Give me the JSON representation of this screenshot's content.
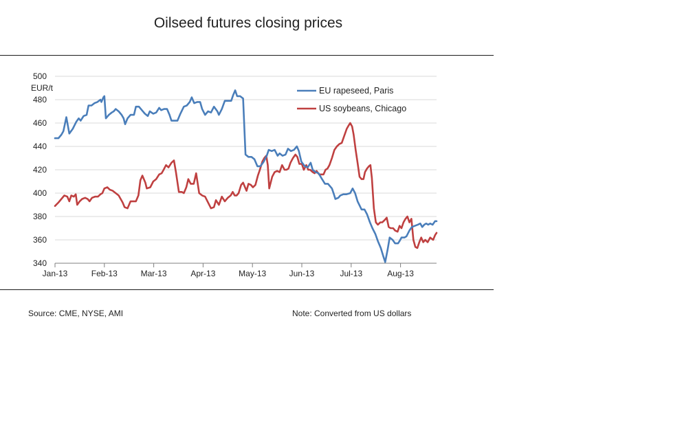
{
  "page": {
    "source": "Source: CME, NYSE, AMI",
    "note": "Note: Converted from US dollars"
  },
  "chart_data": {
    "type": "line",
    "title": "Oilseed futures closing prices",
    "ylabel": "EUR/t",
    "xlabel": "",
    "ylim": [
      340,
      500
    ],
    "yticks": [
      340,
      360,
      380,
      400,
      420,
      440,
      460,
      480,
      500
    ],
    "grid": true,
    "legend": "top-right",
    "x_range": [
      0,
      7.73
    ],
    "xticks": [
      {
        "label": "Jan-13",
        "pos": 0
      },
      {
        "label": "Feb-13",
        "pos": 1
      },
      {
        "label": "Mar-13",
        "pos": 2
      },
      {
        "label": "Apr-13",
        "pos": 3
      },
      {
        "label": "May-13",
        "pos": 4
      },
      {
        "label": "Jun-13",
        "pos": 5
      },
      {
        "label": "Jul-13",
        "pos": 6
      },
      {
        "label": "Aug-13",
        "pos": 7
      }
    ],
    "series": [
      {
        "name": "EU rapeseed,  Paris",
        "color": "#4a7eba",
        "points": [
          [
            0.0,
            447
          ],
          [
            0.07,
            447
          ],
          [
            0.13,
            450
          ],
          [
            0.17,
            453
          ],
          [
            0.23,
            465
          ],
          [
            0.29,
            451
          ],
          [
            0.36,
            455
          ],
          [
            0.43,
            461
          ],
          [
            0.48,
            464
          ],
          [
            0.52,
            462
          ],
          [
            0.58,
            466
          ],
          [
            0.64,
            467
          ],
          [
            0.68,
            475
          ],
          [
            0.74,
            475
          ],
          [
            0.8,
            477
          ],
          [
            0.86,
            478
          ],
          [
            0.92,
            480
          ],
          [
            0.94,
            478
          ],
          [
            0.98,
            482
          ],
          [
            1.0,
            483
          ],
          [
            1.03,
            464
          ],
          [
            1.09,
            467
          ],
          [
            1.15,
            469
          ],
          [
            1.19,
            470
          ],
          [
            1.23,
            472
          ],
          [
            1.29,
            470
          ],
          [
            1.35,
            467
          ],
          [
            1.39,
            464
          ],
          [
            1.42,
            459
          ],
          [
            1.47,
            464
          ],
          [
            1.53,
            467
          ],
          [
            1.6,
            467
          ],
          [
            1.64,
            474
          ],
          [
            1.7,
            474
          ],
          [
            1.76,
            471
          ],
          [
            1.82,
            468
          ],
          [
            1.88,
            466
          ],
          [
            1.92,
            470
          ],
          [
            1.99,
            468
          ],
          [
            2.05,
            469
          ],
          [
            2.11,
            473
          ],
          [
            2.15,
            471
          ],
          [
            2.21,
            472
          ],
          [
            2.27,
            472
          ],
          [
            2.32,
            467
          ],
          [
            2.36,
            462
          ],
          [
            2.42,
            462
          ],
          [
            2.48,
            462
          ],
          [
            2.54,
            468
          ],
          [
            2.61,
            474
          ],
          [
            2.67,
            475
          ],
          [
            2.73,
            478
          ],
          [
            2.77,
            482
          ],
          [
            2.82,
            477
          ],
          [
            2.88,
            478
          ],
          [
            2.94,
            478
          ],
          [
            2.98,
            472
          ],
          [
            3.04,
            467
          ],
          [
            3.1,
            470
          ],
          [
            3.16,
            469
          ],
          [
            3.22,
            474
          ],
          [
            3.29,
            470
          ],
          [
            3.32,
            467
          ],
          [
            3.38,
            472
          ],
          [
            3.44,
            479
          ],
          [
            3.5,
            479
          ],
          [
            3.57,
            479
          ],
          [
            3.61,
            484
          ],
          [
            3.65,
            488
          ],
          [
            3.69,
            483
          ],
          [
            3.75,
            483
          ],
          [
            3.81,
            481
          ],
          [
            3.86,
            433
          ],
          [
            3.92,
            431
          ],
          [
            3.98,
            431
          ],
          [
            4.04,
            429
          ],
          [
            4.1,
            423
          ],
          [
            4.16,
            423
          ],
          [
            4.23,
            427
          ],
          [
            4.29,
            432
          ],
          [
            4.33,
            437
          ],
          [
            4.39,
            436
          ],
          [
            4.45,
            437
          ],
          [
            4.51,
            432
          ],
          [
            4.55,
            434
          ],
          [
            4.61,
            432
          ],
          [
            4.67,
            433
          ],
          [
            4.72,
            438
          ],
          [
            4.78,
            436
          ],
          [
            4.84,
            437
          ],
          [
            4.9,
            440
          ],
          [
            4.94,
            436
          ],
          [
            4.99,
            427
          ],
          [
            5.06,
            423
          ],
          [
            5.12,
            422
          ],
          [
            5.18,
            426
          ],
          [
            5.22,
            420
          ],
          [
            5.28,
            418
          ],
          [
            5.34,
            417
          ],
          [
            5.41,
            412
          ],
          [
            5.47,
            408
          ],
          [
            5.53,
            408
          ],
          [
            5.61,
            404
          ],
          [
            5.65,
            399
          ],
          [
            5.68,
            395
          ],
          [
            5.74,
            396
          ],
          [
            5.78,
            398
          ],
          [
            5.84,
            399
          ],
          [
            5.9,
            399
          ],
          [
            5.98,
            400
          ],
          [
            6.03,
            404
          ],
          [
            6.08,
            400
          ],
          [
            6.13,
            393
          ],
          [
            6.21,
            386
          ],
          [
            6.27,
            386
          ],
          [
            6.32,
            382
          ],
          [
            6.38,
            375
          ],
          [
            6.43,
            370
          ],
          [
            6.49,
            365
          ],
          [
            6.54,
            359
          ],
          [
            6.6,
            353
          ],
          [
            6.65,
            346
          ],
          [
            6.69,
            341
          ],
          [
            6.74,
            352
          ],
          [
            6.78,
            362
          ],
          [
            6.84,
            360
          ],
          [
            6.89,
            357
          ],
          [
            6.95,
            357
          ],
          [
            6.98,
            359
          ],
          [
            7.02,
            362
          ],
          [
            7.08,
            362
          ],
          [
            7.12,
            363
          ],
          [
            7.18,
            368
          ],
          [
            7.23,
            371
          ],
          [
            7.29,
            372
          ],
          [
            7.35,
            373
          ],
          [
            7.4,
            374
          ],
          [
            7.44,
            371
          ],
          [
            7.48,
            373
          ],
          [
            7.52,
            374
          ],
          [
            7.56,
            373
          ],
          [
            7.6,
            374
          ],
          [
            7.65,
            373
          ],
          [
            7.7,
            376
          ],
          [
            7.73,
            376
          ]
        ]
      },
      {
        "name": "US soybeans, Chicago",
        "color": "#bf4040",
        "points": [
          [
            0.0,
            389
          ],
          [
            0.07,
            392
          ],
          [
            0.13,
            395
          ],
          [
            0.19,
            398
          ],
          [
            0.25,
            397
          ],
          [
            0.29,
            393
          ],
          [
            0.33,
            398
          ],
          [
            0.38,
            397
          ],
          [
            0.42,
            399
          ],
          [
            0.45,
            390
          ],
          [
            0.5,
            393
          ],
          [
            0.55,
            395
          ],
          [
            0.61,
            396
          ],
          [
            0.66,
            395
          ],
          [
            0.7,
            393
          ],
          [
            0.75,
            396
          ],
          [
            0.81,
            397
          ],
          [
            0.87,
            397
          ],
          [
            0.92,
            399
          ],
          [
            0.96,
            400
          ],
          [
            1.0,
            404
          ],
          [
            1.06,
            405
          ],
          [
            1.11,
            403
          ],
          [
            1.17,
            402
          ],
          [
            1.23,
            400
          ],
          [
            1.29,
            398
          ],
          [
            1.33,
            395
          ],
          [
            1.37,
            392
          ],
          [
            1.41,
            388
          ],
          [
            1.47,
            387
          ],
          [
            1.53,
            393
          ],
          [
            1.58,
            393
          ],
          [
            1.64,
            393
          ],
          [
            1.69,
            398
          ],
          [
            1.73,
            411
          ],
          [
            1.77,
            415
          ],
          [
            1.83,
            409
          ],
          [
            1.86,
            404
          ],
          [
            1.93,
            405
          ],
          [
            1.99,
            410
          ],
          [
            2.05,
            412
          ],
          [
            2.11,
            416
          ],
          [
            2.16,
            417
          ],
          [
            2.2,
            420
          ],
          [
            2.25,
            424
          ],
          [
            2.3,
            422
          ],
          [
            2.36,
            426
          ],
          [
            2.41,
            428
          ],
          [
            2.45,
            418
          ],
          [
            2.51,
            401
          ],
          [
            2.57,
            401
          ],
          [
            2.61,
            400
          ],
          [
            2.66,
            405
          ],
          [
            2.7,
            412
          ],
          [
            2.75,
            408
          ],
          [
            2.81,
            408
          ],
          [
            2.86,
            417
          ],
          [
            2.92,
            400
          ],
          [
            2.98,
            398
          ],
          [
            3.04,
            397
          ],
          [
            3.1,
            392
          ],
          [
            3.16,
            387
          ],
          [
            3.22,
            388
          ],
          [
            3.26,
            394
          ],
          [
            3.32,
            390
          ],
          [
            3.38,
            397
          ],
          [
            3.44,
            393
          ],
          [
            3.5,
            396
          ],
          [
            3.56,
            398
          ],
          [
            3.6,
            401
          ],
          [
            3.64,
            398
          ],
          [
            3.68,
            398
          ],
          [
            3.72,
            400
          ],
          [
            3.77,
            407
          ],
          [
            3.81,
            409
          ],
          [
            3.85,
            405
          ],
          [
            3.88,
            402
          ],
          [
            3.92,
            408
          ],
          [
            3.97,
            407
          ],
          [
            4.01,
            405
          ],
          [
            4.06,
            407
          ],
          [
            4.11,
            415
          ],
          [
            4.15,
            420
          ],
          [
            4.2,
            427
          ],
          [
            4.24,
            430
          ],
          [
            4.28,
            432
          ],
          [
            4.31,
            424
          ],
          [
            4.34,
            404
          ],
          [
            4.4,
            414
          ],
          [
            4.45,
            418
          ],
          [
            4.5,
            419
          ],
          [
            4.55,
            418
          ],
          [
            4.6,
            424
          ],
          [
            4.65,
            420
          ],
          [
            4.69,
            420
          ],
          [
            4.73,
            421
          ],
          [
            4.77,
            426
          ],
          [
            4.82,
            430
          ],
          [
            4.87,
            433
          ],
          [
            4.91,
            431
          ],
          [
            4.95,
            425
          ],
          [
            5.0,
            425
          ],
          [
            5.04,
            420
          ],
          [
            5.09,
            424
          ],
          [
            5.13,
            420
          ],
          [
            5.17,
            420
          ],
          [
            5.22,
            418
          ],
          [
            5.26,
            417
          ],
          [
            5.3,
            419
          ],
          [
            5.35,
            416
          ],
          [
            5.39,
            416
          ],
          [
            5.44,
            416
          ],
          [
            5.48,
            420
          ],
          [
            5.52,
            421
          ],
          [
            5.56,
            424
          ],
          [
            5.61,
            430
          ],
          [
            5.66,
            437
          ],
          [
            5.71,
            440
          ],
          [
            5.76,
            442
          ],
          [
            5.81,
            443
          ],
          [
            5.86,
            449
          ],
          [
            5.91,
            455
          ],
          [
            5.95,
            458
          ],
          [
            5.98,
            460
          ],
          [
            6.02,
            457
          ],
          [
            6.05,
            450
          ],
          [
            6.09,
            437
          ],
          [
            6.13,
            426
          ],
          [
            6.17,
            414
          ],
          [
            6.21,
            412
          ],
          [
            6.25,
            412
          ],
          [
            6.28,
            418
          ],
          [
            6.32,
            421
          ],
          [
            6.36,
            423
          ],
          [
            6.39,
            424
          ],
          [
            6.42,
            413
          ],
          [
            6.46,
            387
          ],
          [
            6.5,
            375
          ],
          [
            6.54,
            373
          ],
          [
            6.59,
            375
          ],
          [
            6.63,
            375
          ],
          [
            6.68,
            377
          ],
          [
            6.72,
            379
          ],
          [
            6.76,
            371
          ],
          [
            6.8,
            370
          ],
          [
            6.85,
            370
          ],
          [
            6.89,
            368
          ],
          [
            6.94,
            367
          ],
          [
            6.98,
            372
          ],
          [
            7.02,
            370
          ],
          [
            7.06,
            375
          ],
          [
            7.1,
            378
          ],
          [
            7.14,
            380
          ],
          [
            7.18,
            375
          ],
          [
            7.22,
            378
          ],
          [
            7.26,
            360
          ],
          [
            7.3,
            354
          ],
          [
            7.34,
            353
          ],
          [
            7.38,
            358
          ],
          [
            7.42,
            362
          ],
          [
            7.46,
            358
          ],
          [
            7.5,
            360
          ],
          [
            7.55,
            358
          ],
          [
            7.6,
            362
          ],
          [
            7.66,
            360
          ],
          [
            7.7,
            364
          ],
          [
            7.73,
            366
          ]
        ]
      }
    ]
  }
}
